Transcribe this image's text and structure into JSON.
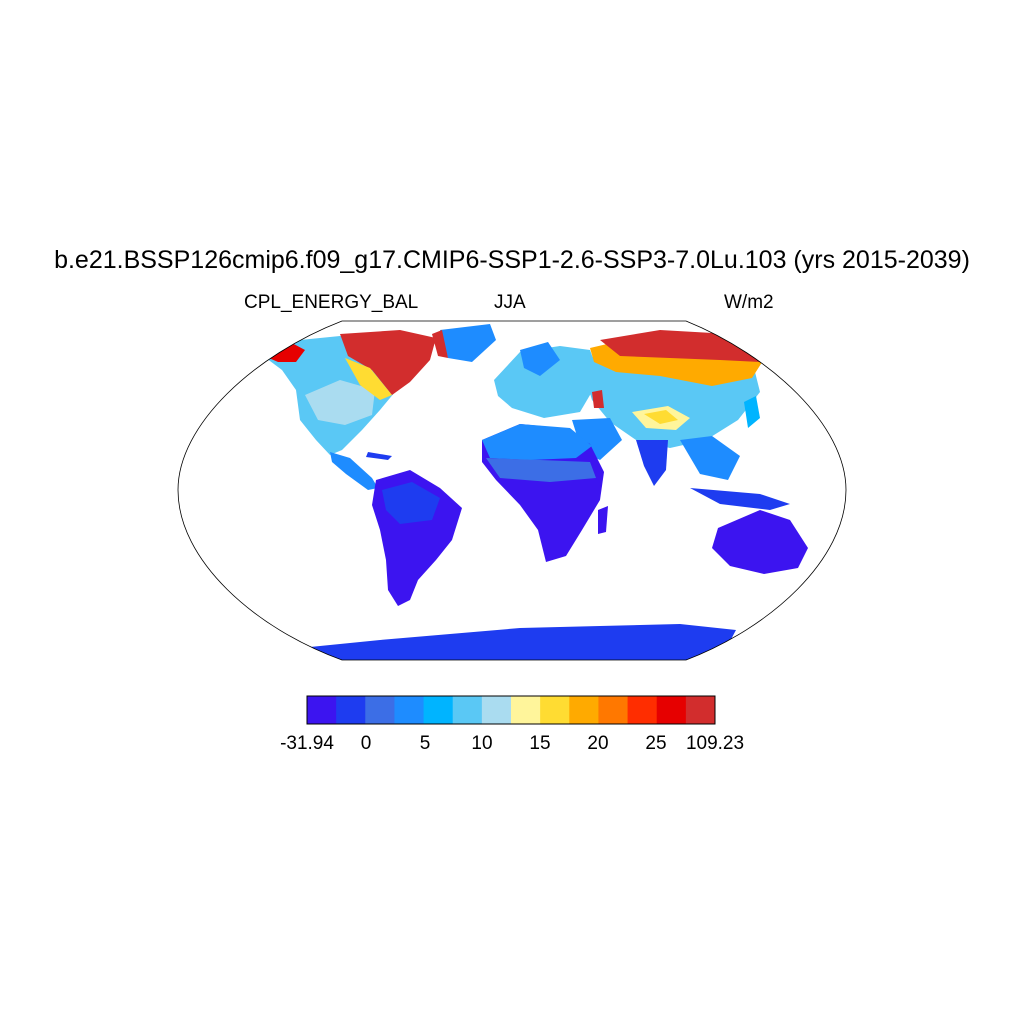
{
  "title": "b.e21.BSSP126cmip6.f09_g17.CMIP6-SSP1-2.6-SSP3-7.0Lu.103 (yrs 2015-2039)",
  "subtitle": {
    "left": "CPL_ENERGY_BAL",
    "center": "JJA",
    "right": "W/m2"
  },
  "colorbar": {
    "colors": [
      "#3c14f0",
      "#1e3cf0",
      "#3c6ee6",
      "#1e8cff",
      "#00b4ff",
      "#5ac8f5",
      "#aadcf0",
      "#fff59b",
      "#ffdc32",
      "#ffaa00",
      "#ff7800",
      "#ff2d00",
      "#e60000",
      "#d22d2d"
    ],
    "labels": [
      "-31.94",
      "0",
      "5",
      "10",
      "15",
      "20",
      "25",
      "109.23"
    ]
  },
  "map_data": {
    "projection": "Robinson",
    "variable": "CPL_ENERGY_BAL",
    "season": "JJA",
    "units": "W/m2"
  }
}
